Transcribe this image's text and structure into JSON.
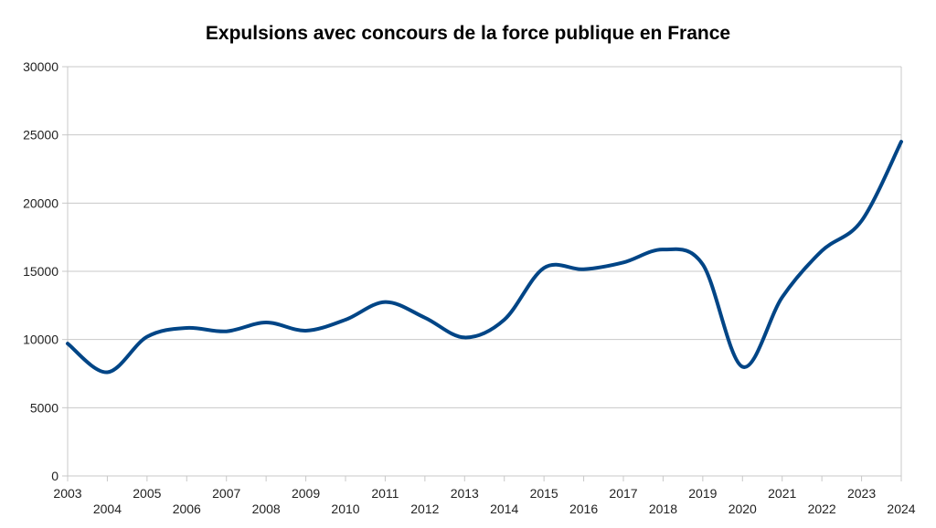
{
  "chart_data": {
    "type": "line",
    "title": "Expulsions avec concours de la force publique en France",
    "xlabel": "",
    "ylabel": "",
    "smoothed": true,
    "grid": true,
    "legend": "none",
    "ylim": [
      0,
      30000
    ],
    "y_ticks": [
      "0",
      "5000",
      "10000",
      "15000",
      "20000",
      "25000",
      "30000"
    ],
    "y_tick_values": [
      0,
      5000,
      10000,
      15000,
      20000,
      25000,
      30000
    ],
    "categories": [
      "2003",
      "2004",
      "2005",
      "2006",
      "2007",
      "2008",
      "2009",
      "2010",
      "2011",
      "2012",
      "2013",
      "2014",
      "2015",
      "2016",
      "2017",
      "2018",
      "2019",
      "2020",
      "2021",
      "2022",
      "2023",
      "2024"
    ],
    "series": [
      {
        "name": "Expulsions",
        "color": "#004586",
        "values": [
          9700,
          7600,
          10200,
          10850,
          10600,
          11250,
          10650,
          11450,
          12750,
          11600,
          10150,
          11450,
          15250,
          15150,
          15650,
          16600,
          15500,
          8000,
          13100,
          16500,
          18700,
          24500
        ]
      }
    ]
  }
}
